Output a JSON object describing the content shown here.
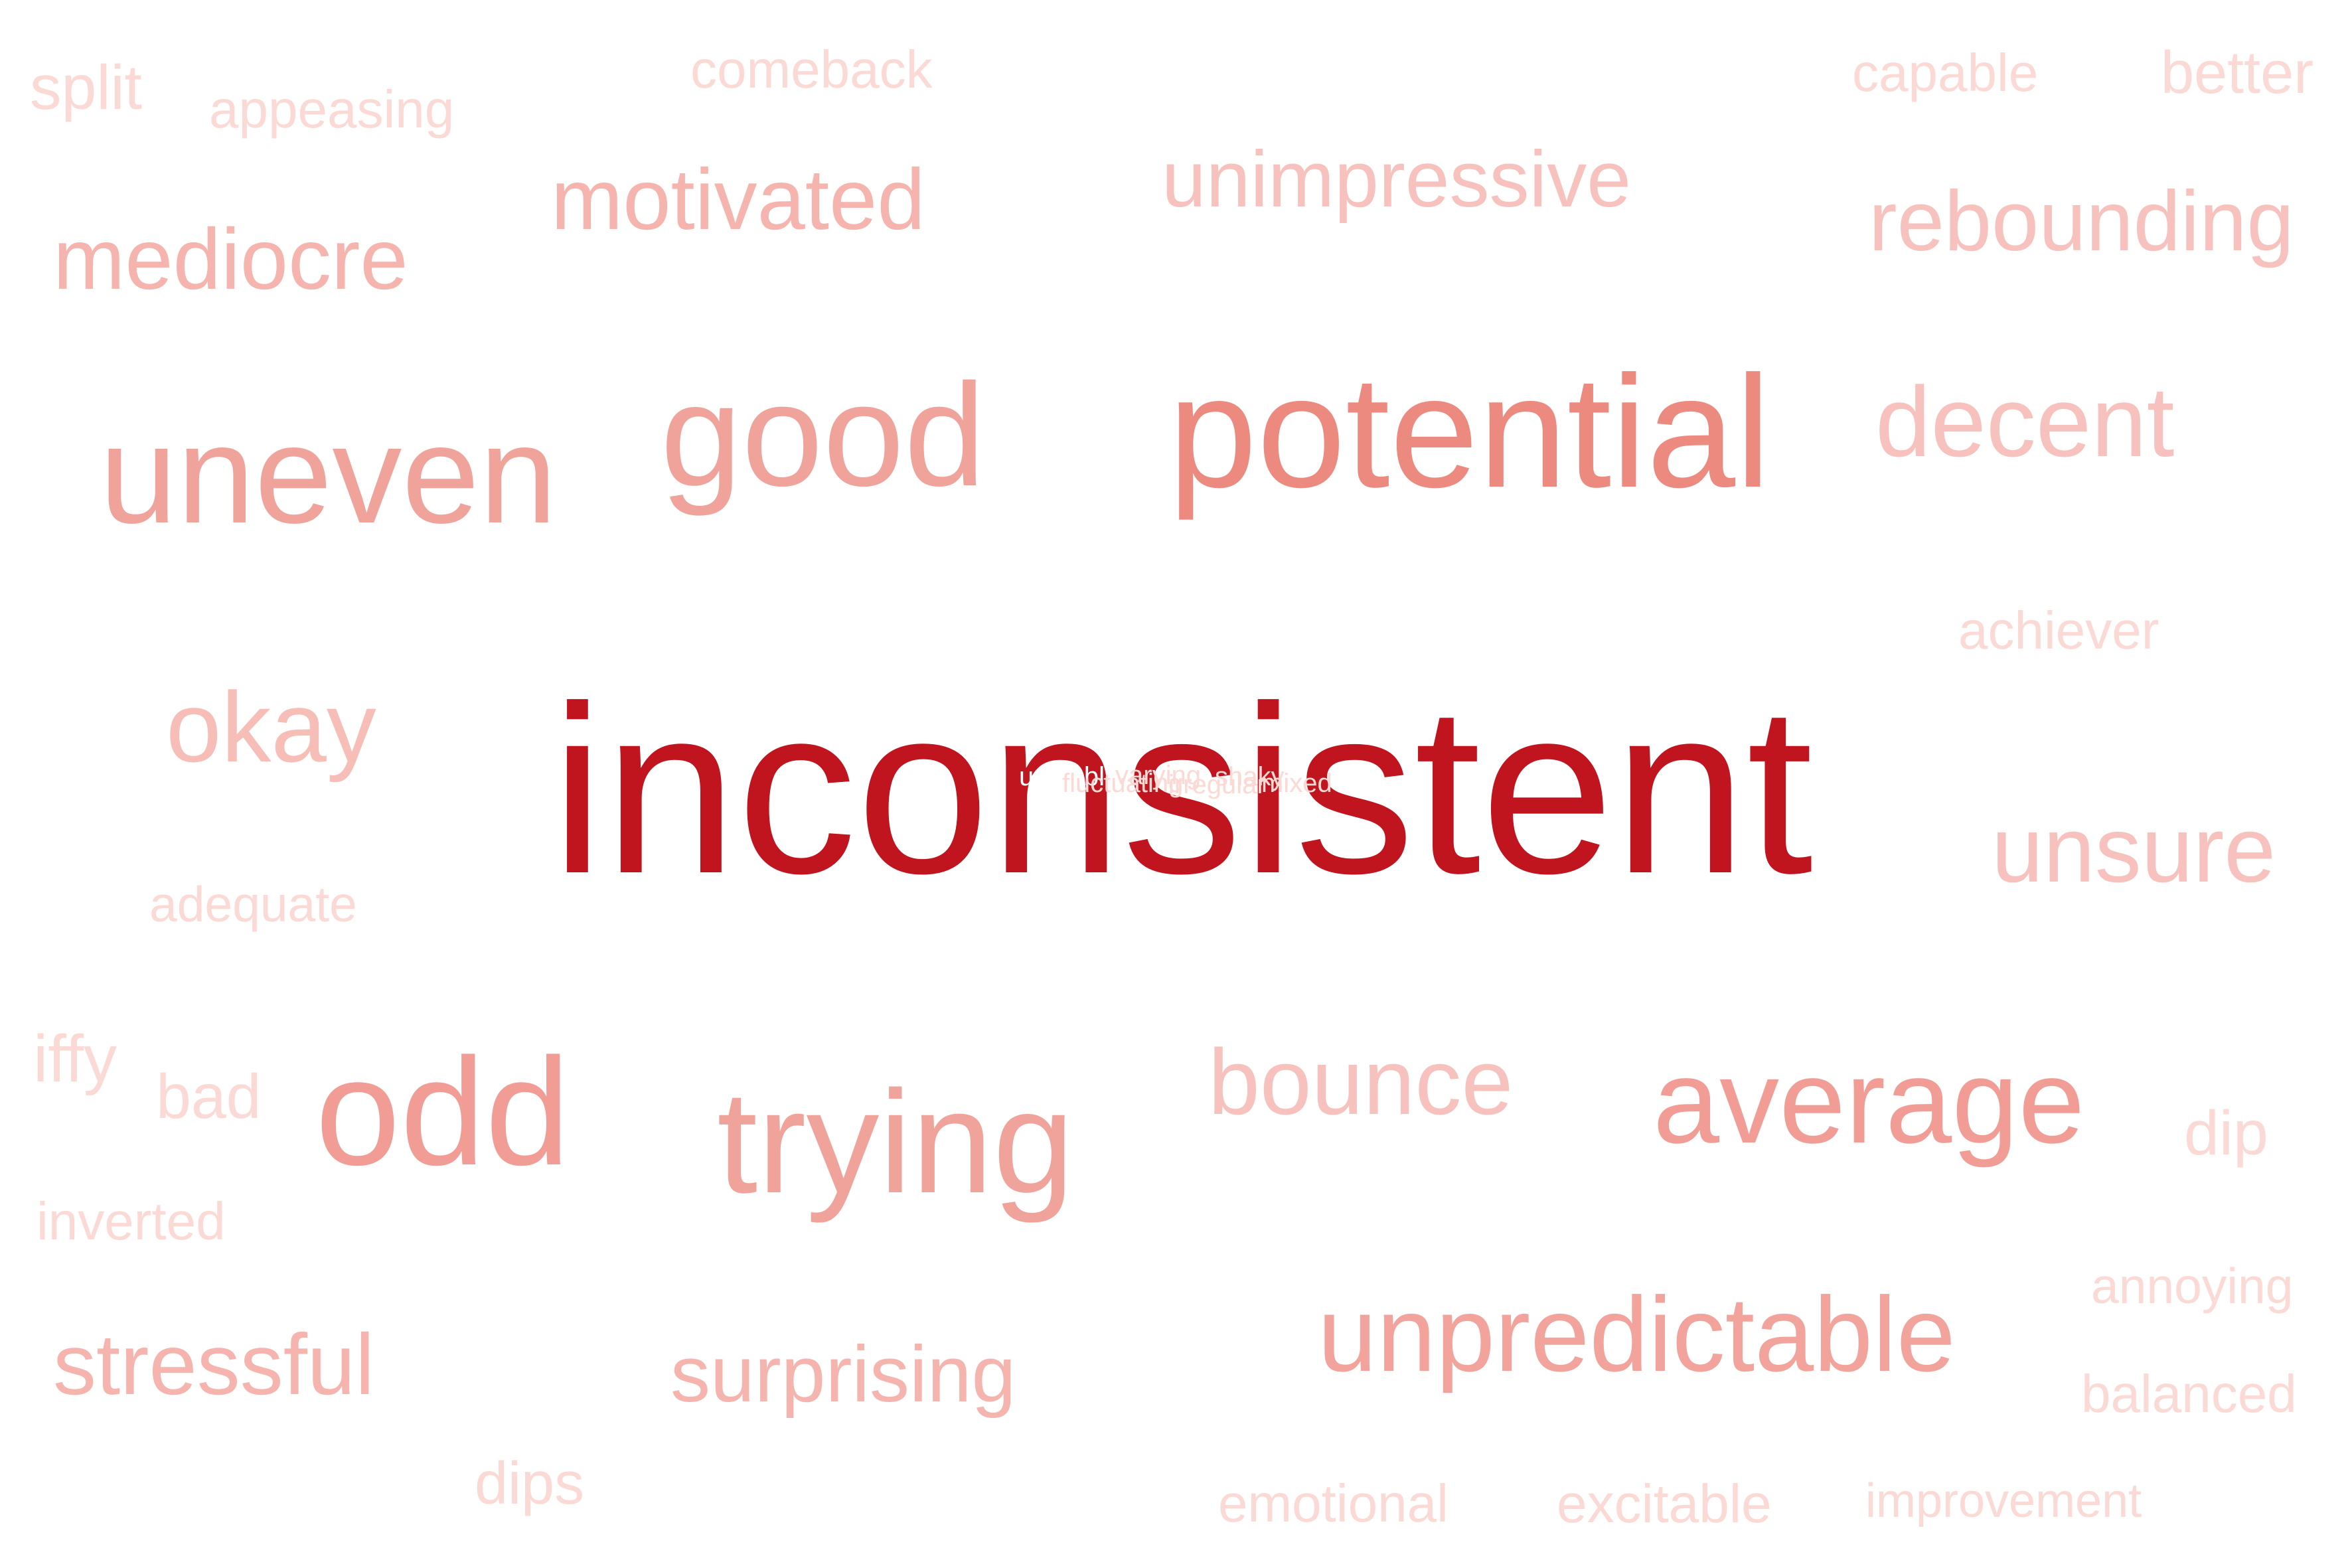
{
  "words": [
    {
      "text": "inconsistent",
      "weight": 1.0,
      "color": "#c0141f"
    },
    {
      "text": "potential",
      "weight": 0.55,
      "color": "#ec8a80"
    },
    {
      "text": "uneven",
      "weight": 0.5,
      "color": "#f0a39b"
    },
    {
      "text": "good",
      "weight": 0.5,
      "color": "#f0a39b"
    },
    {
      "text": "odd",
      "weight": 0.5,
      "color": "#f19d95"
    },
    {
      "text": "trying",
      "weight": 0.5,
      "color": "#f0a39b"
    },
    {
      "text": "average",
      "weight": 0.45,
      "color": "#f19d95"
    },
    {
      "text": "unpredictable",
      "weight": 0.42,
      "color": "#f2a49c"
    },
    {
      "text": "decent",
      "weight": 0.4,
      "color": "#f7c2bd"
    },
    {
      "text": "okay",
      "weight": 0.38,
      "color": "#f7bdb7"
    },
    {
      "text": "bounce",
      "weight": 0.38,
      "color": "#f7c2bd"
    },
    {
      "text": "unsure",
      "weight": 0.38,
      "color": "#f7c2bd"
    },
    {
      "text": "motivated",
      "weight": 0.35,
      "color": "#f5b4ad"
    },
    {
      "text": "mediocre",
      "weight": 0.35,
      "color": "#f5b4ad"
    },
    {
      "text": "rebounding",
      "weight": 0.33,
      "color": "#f7c2bd"
    },
    {
      "text": "unimpressive",
      "weight": 0.32,
      "color": "#f7c2bd"
    },
    {
      "text": "stressful",
      "weight": 0.34,
      "color": "#f5b4ad"
    },
    {
      "text": "surprising",
      "weight": 0.32,
      "color": "#f5b4ad"
    },
    {
      "text": "split",
      "weight": 0.22,
      "color": "#fbd9d5"
    },
    {
      "text": "appeasing",
      "weight": 0.18,
      "color": "#fbd9d5"
    },
    {
      "text": "comeback",
      "weight": 0.18,
      "color": "#fbd9d5"
    },
    {
      "text": "capable",
      "weight": 0.18,
      "color": "#fbd9d5"
    },
    {
      "text": "better",
      "weight": 0.2,
      "color": "#fbd9d5"
    },
    {
      "text": "achiever",
      "weight": 0.18,
      "color": "#fbd9d5"
    },
    {
      "text": "adequate",
      "weight": 0.17,
      "color": "#fbd9d5"
    },
    {
      "text": "iffy",
      "weight": 0.22,
      "color": "#fbd9d5"
    },
    {
      "text": "bad",
      "weight": 0.22,
      "color": "#fbd9d5"
    },
    {
      "text": "dip",
      "weight": 0.22,
      "color": "#fbd9d5"
    },
    {
      "text": "inverted",
      "weight": 0.18,
      "color": "#fbd9d5"
    },
    {
      "text": "annoying",
      "weight": 0.17,
      "color": "#fbd9d5"
    },
    {
      "text": "balanced",
      "weight": 0.18,
      "color": "#fbd9d5"
    },
    {
      "text": "dips",
      "weight": 0.2,
      "color": "#fbd9d5"
    },
    {
      "text": "emotional",
      "weight": 0.18,
      "color": "#fbd9d5"
    },
    {
      "text": "excitable",
      "weight": 0.18,
      "color": "#fbd9d5"
    },
    {
      "text": "improvement",
      "weight": 0.17,
      "color": "#fbd9d5"
    }
  ],
  "overlap_words": [
    {
      "text": "unstable",
      "color": "#ffffff"
    },
    {
      "text": "fluctuating",
      "color": "#fbd9d5"
    },
    {
      "text": "varying",
      "color": "#fbd9d5"
    },
    {
      "text": "irregular",
      "color": "#fbd9d5"
    },
    {
      "text": "shaky",
      "color": "#fbd9d5"
    },
    {
      "text": "mixed",
      "color": "#fbd9d5"
    }
  ]
}
